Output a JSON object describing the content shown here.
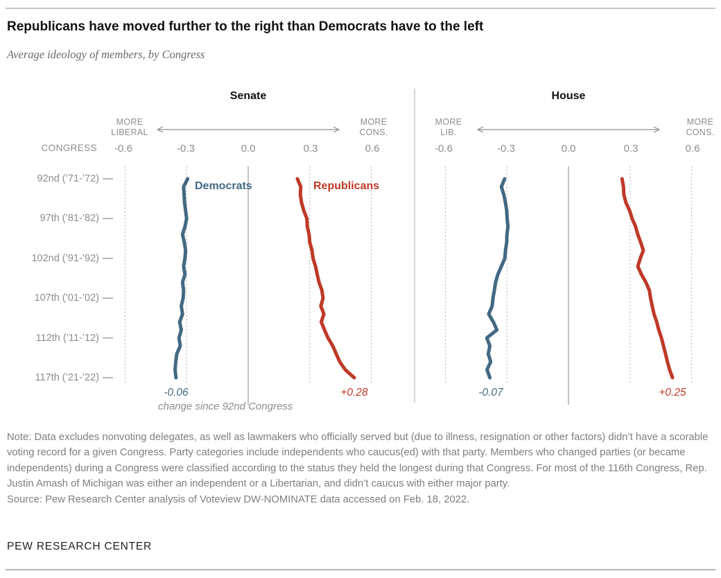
{
  "page": {
    "title": "Republicans have moved further to the right than Democrats have to the left",
    "subtitle": "Average ideology of members, by Congress",
    "note": "Note: Data excludes nonvoting delegates, as well as lawmakers who officially served but (due to illness, resignation or other factors) didn’t have a scorable voting record for a given Congress. Party categories include independents who caucus(ed) with that party. Members who changed parties (or became independents) during a Congress were classified according to the status they held the longest during that Congress. For most of the 116th Congress, Rep. Justin Amash of Michigan was either an independent or a Libertarian, and didn’t caucus with either major party.",
    "source": "Source: Pew Research Center analysis of Voteview DW-NOMINATE data accessed on Feb. 18, 2022.",
    "footer": "PEW RESEARCH CENTER"
  },
  "chart_data": {
    "type": "line",
    "orientation": "vertical-time",
    "title": "Average ideology of members, by Congress",
    "x_axis_label": "CONGRESS",
    "x_ticks": [
      "-0.6",
      "-0.3",
      "0.0",
      "0.3",
      "0.6"
    ],
    "x_tick_values": [
      -0.6,
      -0.3,
      0.0,
      0.3,
      0.6
    ],
    "x_range": [
      -0.6,
      0.6
    ],
    "grid": "dotted vertical gridlines, solid line at 0.0",
    "legend_position": "inline at top of lines (Senate panel only)",
    "change_note": "change since 92nd Congress",
    "colors": {
      "democrats": "#436983",
      "republicans": "#bf3927"
    },
    "row_labels": [
      {
        "label": "92nd (’71-’72)",
        "row": 0
      },
      {
        "label": "97th (’81-’82)",
        "row": 5
      },
      {
        "label": "102nd (’91-’92)",
        "row": 10
      },
      {
        "label": "107th (’01-’02)",
        "row": 15
      },
      {
        "label": "112th (’11-’12)",
        "row": 20
      },
      {
        "label": "117th (’21-’22)",
        "row": 25
      }
    ],
    "panels": [
      {
        "title": "Senate",
        "left_label_lines": [
          "MORE",
          "LIBERAL"
        ],
        "right_label_lines": [
          "MORE",
          "CONS."
        ],
        "series": [
          {
            "name": "Democrats",
            "color": "#436983",
            "end_label": "-0.06",
            "values": [
              -0.295,
              -0.315,
              -0.312,
              -0.31,
              -0.305,
              -0.3,
              -0.308,
              -0.32,
              -0.311,
              -0.305,
              -0.308,
              -0.315,
              -0.308,
              -0.32,
              -0.315,
              -0.317,
              -0.326,
              -0.32,
              -0.334,
              -0.326,
              -0.337,
              -0.331,
              -0.348,
              -0.353,
              -0.356,
              -0.352
            ]
          },
          {
            "name": "Republicans",
            "color": "#bf3927",
            "end_label": "+0.28",
            "values": [
              0.24,
              0.256,
              0.254,
              0.26,
              0.271,
              0.286,
              0.288,
              0.297,
              0.3,
              0.311,
              0.316,
              0.328,
              0.336,
              0.345,
              0.359,
              0.365,
              0.354,
              0.369,
              0.356,
              0.372,
              0.389,
              0.412,
              0.429,
              0.446,
              0.473,
              0.517
            ]
          }
        ]
      },
      {
        "title": "House",
        "left_label_lines": [
          "MORE",
          "LIB."
        ],
        "right_label_lines": [
          "MORE",
          "CONS."
        ],
        "series": [
          {
            "name": "Democrats",
            "color": "#436983",
            "end_label": "-0.07",
            "values": [
              -0.311,
              -0.327,
              -0.315,
              -0.307,
              -0.301,
              -0.299,
              -0.295,
              -0.3,
              -0.301,
              -0.307,
              -0.31,
              -0.327,
              -0.344,
              -0.355,
              -0.361,
              -0.368,
              -0.372,
              -0.389,
              -0.366,
              -0.349,
              -0.398,
              -0.383,
              -0.391,
              -0.379,
              -0.397,
              -0.383
            ]
          },
          {
            "name": "Republicans",
            "color": "#bf3927",
            "end_label": "+0.25",
            "values": [
              0.261,
              0.268,
              0.27,
              0.28,
              0.298,
              0.31,
              0.327,
              0.338,
              0.352,
              0.365,
              0.35,
              0.338,
              0.355,
              0.377,
              0.394,
              0.4,
              0.408,
              0.417,
              0.43,
              0.44,
              0.453,
              0.463,
              0.473,
              0.482,
              0.493,
              0.507
            ]
          }
        ]
      }
    ]
  }
}
